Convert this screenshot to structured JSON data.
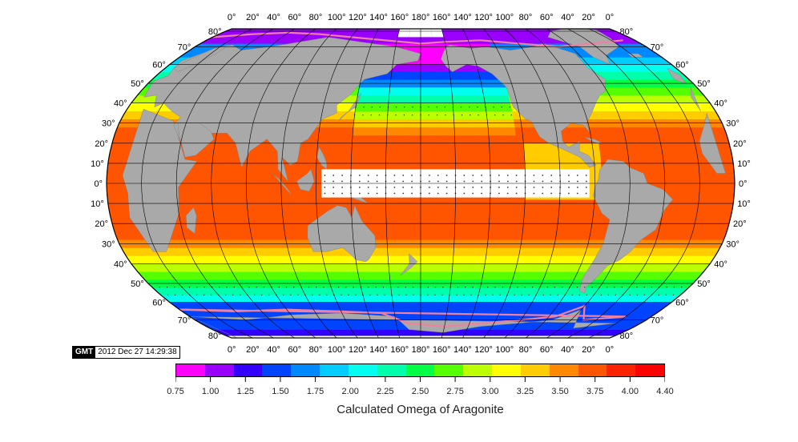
{
  "map": {
    "projection": "Robinson",
    "central_meridian": 180,
    "top_lon_labels": [
      "0°",
      "20°",
      "40°",
      "60°",
      "80°",
      "100°",
      "120°",
      "140°",
      "160°",
      "180°",
      "160°",
      "140°",
      "120°",
      "100°",
      "80°",
      "60°",
      "40°",
      "20°",
      "0°"
    ],
    "bottom_lon_labels": [
      "0°",
      "20°",
      "40°",
      "60°",
      "80°",
      "100°",
      "120°",
      "140°",
      "160°",
      "180°",
      "160°",
      "140°",
      "120°",
      "100°",
      "80°",
      "60°",
      "40°",
      "20°",
      "0°"
    ],
    "lat_labels": [
      "80°",
      "70°",
      "60°",
      "50°",
      "40°",
      "30°",
      "20°",
      "10°",
      "0°",
      "10°",
      "20°",
      "30°",
      "40°",
      "50°",
      "60°",
      "70°",
      "80°"
    ],
    "land_color": "#a9a9a9",
    "ice_edge_color": "#f080a0"
  },
  "stamp": {
    "logo": "GMT",
    "timestamp": "2012 Dec 27 14:29:38"
  },
  "colorbar": {
    "tick_labels": [
      "0.75",
      "1.00",
      "1.25",
      "1.50",
      "1.75",
      "2.00",
      "2.25",
      "2.50",
      "2.75",
      "3.00",
      "3.25",
      "3.50",
      "3.75",
      "4.00",
      "4.40"
    ],
    "title": "Calculated  Omega of Aragonite",
    "colors": [
      "#ff00ff",
      "#9900ff",
      "#3300ff",
      "#0044ff",
      "#0088ff",
      "#00ccff",
      "#00ffee",
      "#00ffaa",
      "#00ff44",
      "#55ff00",
      "#bbff00",
      "#ffff00",
      "#ffcc00",
      "#ff8800",
      "#ff5500",
      "#ff2200",
      "#ff0000"
    ]
  }
}
